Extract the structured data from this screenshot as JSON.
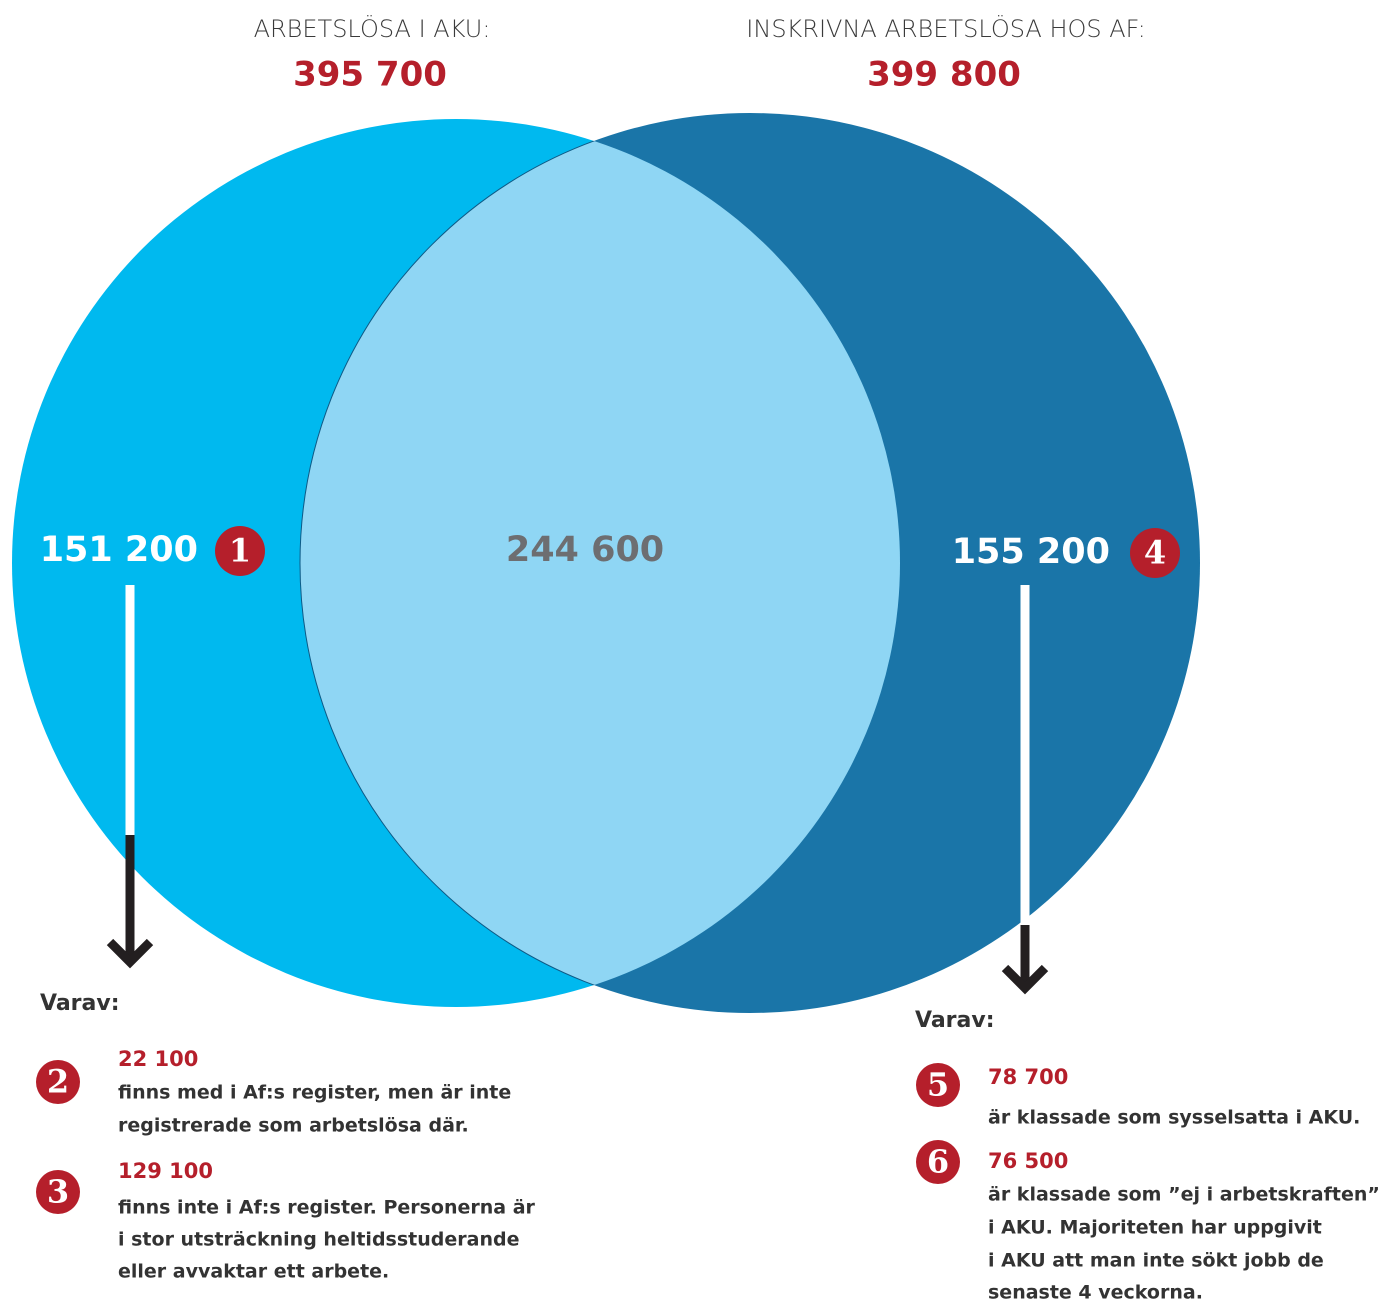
{
  "left_set": {
    "label": "ARBETSLÖSA I AKU:",
    "total": "395 700",
    "only": "151 200",
    "badge": "1"
  },
  "right_set": {
    "label": "INSKRIVNA ARBETSLÖSA HOS AF:",
    "total": "399 800",
    "only": "155 200",
    "badge": "4"
  },
  "overlap": "244 600",
  "left_breakdown": {
    "heading": "Varav:",
    "items": [
      {
        "badge": "2",
        "value": "22 100",
        "lines": [
          "finns med i Af:s register, men är inte",
          "registrerade som arbetslösa där."
        ]
      },
      {
        "badge": "3",
        "value": "129 100",
        "lines": [
          "finns inte i Af:s register. Personerna är",
          "i stor utsträckning heltidsstuderande",
          "eller avvaktar ett arbete."
        ]
      }
    ]
  },
  "right_breakdown": {
    "heading": "Varav:",
    "items": [
      {
        "badge": "5",
        "value": "78 700",
        "lines": [
          "är klassade som sysselsatta i AKU."
        ]
      },
      {
        "badge": "6",
        "value": "76 500",
        "lines": [
          "är klassade som ”ej i arbetskraften”",
          "i AKU. Majoriteten har uppgivit",
          "i AKU att man inte sökt jobb de",
          "senaste 4 veckorna."
        ]
      }
    ]
  }
}
